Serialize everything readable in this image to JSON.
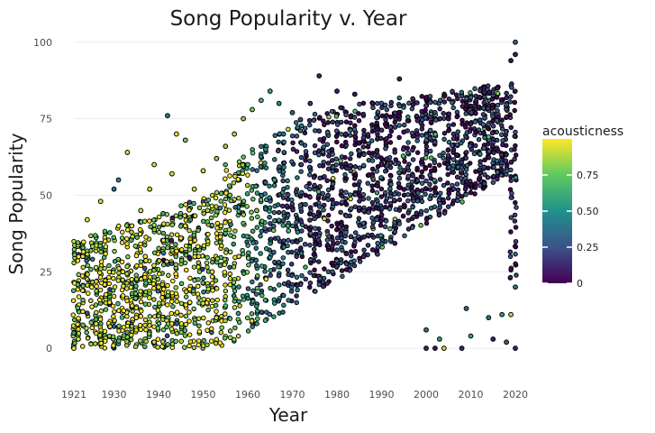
{
  "chart_data": {
    "type": "scatter",
    "title": "Song Popularity v. Year",
    "xlabel": "Year",
    "ylabel": "Song Popularity",
    "xlim": [
      1921,
      2020
    ],
    "ylim": [
      -10,
      102
    ],
    "x_ticks": [
      {
        "value": 1921,
        "label": "1921"
      },
      {
        "value": 1930,
        "label": "1930"
      },
      {
        "value": 1940,
        "label": "1940"
      },
      {
        "value": 1950,
        "label": "1950"
      },
      {
        "value": 1960,
        "label": "1960"
      },
      {
        "value": 1970,
        "label": "1970"
      },
      {
        "value": 1980,
        "label": "1980"
      },
      {
        "value": 1990,
        "label": "1990"
      },
      {
        "value": 2000,
        "label": "2000"
      },
      {
        "value": 2010,
        "label": "2010"
      },
      {
        "value": 2020,
        "label": "2020"
      }
    ],
    "y_ticks": [
      {
        "value": 0,
        "label": "0"
      },
      {
        "value": 25,
        "label": "25"
      },
      {
        "value": 50,
        "label": "50"
      },
      {
        "value": 75,
        "label": "75"
      },
      {
        "value": 100,
        "label": "100"
      }
    ],
    "grid": true,
    "color": {
      "variable": "acousticness",
      "range": [
        0,
        1
      ],
      "colormap": "viridis",
      "ticks": [
        {
          "value": 0,
          "label": "0"
        },
        {
          "value": 0.25,
          "label": "0.25"
        },
        {
          "value": 0.5,
          "label": "0.50"
        },
        {
          "value": 0.75,
          "label": "0.75"
        }
      ]
    },
    "legend_position": "right",
    "point_stroke": "#000000",
    "colormap_stops": [
      "#440154",
      "#3b528b",
      "#21918c",
      "#5ec962",
      "#fde725"
    ],
    "points": [
      {
        "x": 1921,
        "y": 0,
        "c": 0.97
      },
      {
        "x": 1921,
        "y": 5,
        "c": 0.6
      },
      {
        "x": 1922,
        "y": 3,
        "c": 0.95
      },
      {
        "x": 1923,
        "y": 12,
        "c": 0.98
      },
      {
        "x": 1923,
        "y": 30,
        "c": 0.96
      },
      {
        "x": 1924,
        "y": 42,
        "c": 0.97
      },
      {
        "x": 1925,
        "y": 20,
        "c": 0.99
      },
      {
        "x": 1926,
        "y": 8,
        "c": 0.95
      },
      {
        "x": 1927,
        "y": 48,
        "c": 0.95
      },
      {
        "x": 1928,
        "y": 35,
        "c": 0.97
      },
      {
        "x": 1929,
        "y": 15,
        "c": 0.98
      },
      {
        "x": 1930,
        "y": 52,
        "c": 0.4
      },
      {
        "x": 1931,
        "y": 55,
        "c": 0.5
      },
      {
        "x": 1932,
        "y": 25,
        "c": 0.96
      },
      {
        "x": 1933,
        "y": 64,
        "c": 0.95
      },
      {
        "x": 1934,
        "y": 40,
        "c": 0.97
      },
      {
        "x": 1935,
        "y": 10,
        "c": 0.99
      },
      {
        "x": 1936,
        "y": 45,
        "c": 0.96
      },
      {
        "x": 1937,
        "y": 30,
        "c": 0.98
      },
      {
        "x": 1938,
        "y": 52,
        "c": 0.95
      },
      {
        "x": 1939,
        "y": 60,
        "c": 0.95
      },
      {
        "x": 1940,
        "y": 20,
        "c": 0.97
      },
      {
        "x": 1941,
        "y": 44,
        "c": 0.6
      },
      {
        "x": 1942,
        "y": 76,
        "c": 0.4
      },
      {
        "x": 1943,
        "y": 57,
        "c": 0.95
      },
      {
        "x": 1944,
        "y": 70,
        "c": 0.95
      },
      {
        "x": 1945,
        "y": 36,
        "c": 0.97
      },
      {
        "x": 1946,
        "y": 68,
        "c": 0.8
      },
      {
        "x": 1947,
        "y": 15,
        "c": 0.98
      },
      {
        "x": 1948,
        "y": 52,
        "c": 0.95
      },
      {
        "x": 1949,
        "y": 30,
        "c": 0.97
      },
      {
        "x": 1950,
        "y": 58,
        "c": 0.95
      },
      {
        "x": 1951,
        "y": 45,
        "c": 0.9
      },
      {
        "x": 1952,
        "y": 25,
        "c": 0.96
      },
      {
        "x": 1953,
        "y": 62,
        "c": 0.85
      },
      {
        "x": 1954,
        "y": 40,
        "c": 0.9
      },
      {
        "x": 1955,
        "y": 66,
        "c": 0.85
      },
      {
        "x": 1956,
        "y": 50,
        "c": 0.8
      },
      {
        "x": 1957,
        "y": 70,
        "c": 0.9
      },
      {
        "x": 1958,
        "y": 30,
        "c": 0.95
      },
      {
        "x": 1959,
        "y": 75,
        "c": 0.85
      },
      {
        "x": 1960,
        "y": 60,
        "c": 0.7
      },
      {
        "x": 1961,
        "y": 78,
        "c": 0.8
      },
      {
        "x": 1962,
        "y": 45,
        "c": 0.8
      },
      {
        "x": 1963,
        "y": 81,
        "c": 0.7
      },
      {
        "x": 1964,
        "y": 65,
        "c": 0.5
      },
      {
        "x": 1965,
        "y": 84,
        "c": 0.6
      },
      {
        "x": 1966,
        "y": 55,
        "c": 0.6
      },
      {
        "x": 1967,
        "y": 80,
        "c": 0.5
      },
      {
        "x": 1968,
        "y": 70,
        "c": 0.4
      },
      {
        "x": 1969,
        "y": 40,
        "c": 0.6
      },
      {
        "x": 1970,
        "y": 77,
        "c": 0.3
      },
      {
        "x": 1972,
        "y": 60,
        "c": 0.2
      },
      {
        "x": 1974,
        "y": 80,
        "c": 0.15
      },
      {
        "x": 1976,
        "y": 89,
        "c": 0.1
      },
      {
        "x": 1978,
        "y": 50,
        "c": 0.2
      },
      {
        "x": 1980,
        "y": 84,
        "c": 0.08
      },
      {
        "x": 1982,
        "y": 70,
        "c": 0.1
      },
      {
        "x": 1984,
        "y": 83,
        "c": 0.06
      },
      {
        "x": 1986,
        "y": 45,
        "c": 0.2
      },
      {
        "x": 1988,
        "y": 80,
        "c": 0.05
      },
      {
        "x": 1990,
        "y": 60,
        "c": 0.1
      },
      {
        "x": 1994,
        "y": 88,
        "c": 0.06
      },
      {
        "x": 1998,
        "y": 70,
        "c": 0.05
      },
      {
        "x": 2000,
        "y": 0,
        "c": 0.1
      },
      {
        "x": 2000,
        "y": 6,
        "c": 0.4
      },
      {
        "x": 2002,
        "y": 0,
        "c": 0.05
      },
      {
        "x": 2003,
        "y": 3,
        "c": 0.55
      },
      {
        "x": 2004,
        "y": 0,
        "c": 0.9
      },
      {
        "x": 2005,
        "y": 75,
        "c": 0.05
      },
      {
        "x": 2008,
        "y": 0,
        "c": 0.1
      },
      {
        "x": 2009,
        "y": 13,
        "c": 0.35
      },
      {
        "x": 2010,
        "y": 4,
        "c": 0.6
      },
      {
        "x": 2012,
        "y": 82,
        "c": 0.05
      },
      {
        "x": 2014,
        "y": 10,
        "c": 0.4
      },
      {
        "x": 2015,
        "y": 3,
        "c": 0.1
      },
      {
        "x": 2016,
        "y": 85,
        "c": 0.05
      },
      {
        "x": 2017,
        "y": 11,
        "c": 0.55
      },
      {
        "x": 2018,
        "y": 2,
        "c": 0.3
      },
      {
        "x": 2019,
        "y": 94,
        "c": 0.05
      },
      {
        "x": 2019,
        "y": 11,
        "c": 0.9
      },
      {
        "x": 2020,
        "y": 100,
        "c": 0.3
      },
      {
        "x": 2020,
        "y": 96,
        "c": 0.1
      },
      {
        "x": 2020,
        "y": 20,
        "c": 0.4
      },
      {
        "x": 2020,
        "y": 0,
        "c": 0.1
      }
    ]
  }
}
